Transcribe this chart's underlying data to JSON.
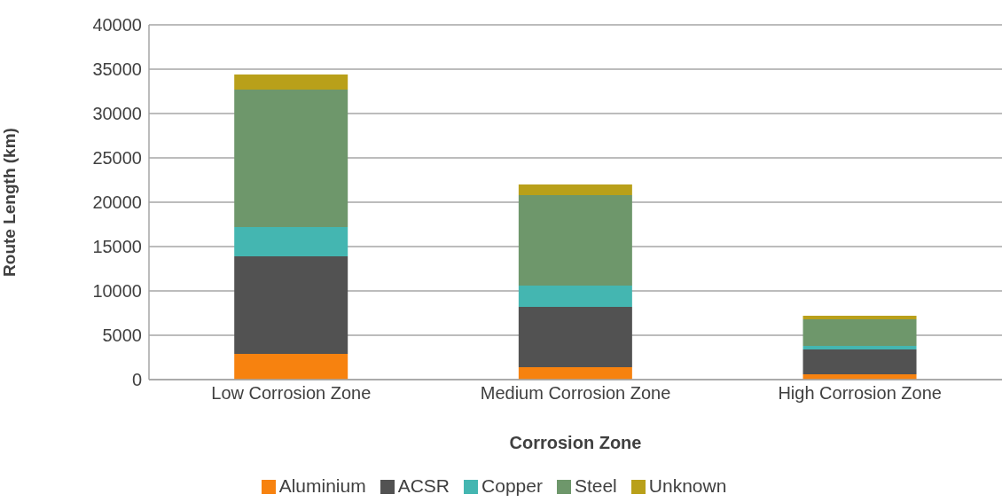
{
  "chart_data": {
    "type": "bar",
    "stacked": true,
    "xlabel": "Corrosion Zone",
    "ylabel": "Route Length (km)",
    "categories": [
      "Low Corrosion Zone",
      "Medium Corrosion Zone",
      "High Corrosion Zone"
    ],
    "series": [
      {
        "name": "Aluminium",
        "color": "#f7820f",
        "values": [
          2900,
          1400,
          600
        ]
      },
      {
        "name": "ACSR",
        "color": "#525252",
        "values": [
          11000,
          6800,
          2800
        ]
      },
      {
        "name": "Copper",
        "color": "#44b6b1",
        "values": [
          3300,
          2400,
          400
        ]
      },
      {
        "name": "Steel",
        "color": "#6e976b",
        "values": [
          15500,
          10200,
          3000
        ]
      },
      {
        "name": "Unknown",
        "color": "#b9a01a",
        "values": [
          1700,
          1200,
          400
        ]
      }
    ],
    "ylim": [
      0,
      40000
    ],
    "yticks": [
      0,
      5000,
      10000,
      15000,
      20000,
      25000,
      30000,
      35000,
      40000
    ],
    "grid": "y",
    "legend": "bottom"
  }
}
